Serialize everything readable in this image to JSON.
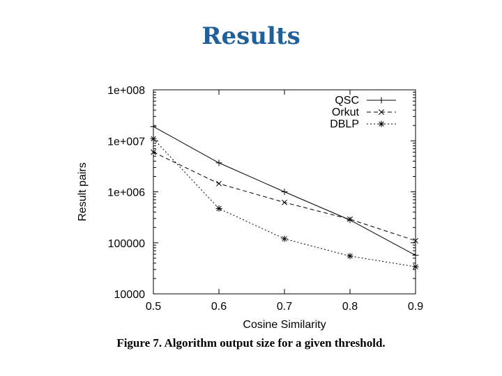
{
  "slide": {
    "title": "Results"
  },
  "figure": {
    "caption": "Figure 7.  Algorithm output size for a given threshold."
  },
  "chart_data": {
    "type": "line",
    "xlabel": "Cosine Similarity",
    "ylabel": "Result pairs",
    "x": [
      0.5,
      0.6,
      0.7,
      0.8,
      0.9
    ],
    "xticks": [
      "0.5",
      "0.6",
      "0.7",
      "0.8",
      "0.9"
    ],
    "xlim": [
      0.5,
      0.9
    ],
    "yscale": "log",
    "ylim": [
      10000,
      100000000
    ],
    "yticks": [
      {
        "value": 100000000,
        "label": "1e+008"
      },
      {
        "value": 10000000,
        "label": "1e+007"
      },
      {
        "value": 1000000,
        "label": "1e+006"
      },
      {
        "value": 100000,
        "label": "100000"
      },
      {
        "value": 10000,
        "label": "10000"
      }
    ],
    "grid": false,
    "legend": "top-right",
    "series": [
      {
        "name": "QSC",
        "marker": "plus",
        "dash": "solid",
        "values": [
          19000000,
          3700000,
          1000000,
          280000,
          57000
        ]
      },
      {
        "name": "Orkut",
        "marker": "cross",
        "dash": "dashed",
        "values": [
          6000000,
          1450000,
          620000,
          290000,
          110000
        ]
      },
      {
        "name": "DBLP",
        "marker": "star",
        "dash": "dotted",
        "values": [
          11000000,
          470000,
          120000,
          55000,
          34000
        ]
      }
    ]
  }
}
